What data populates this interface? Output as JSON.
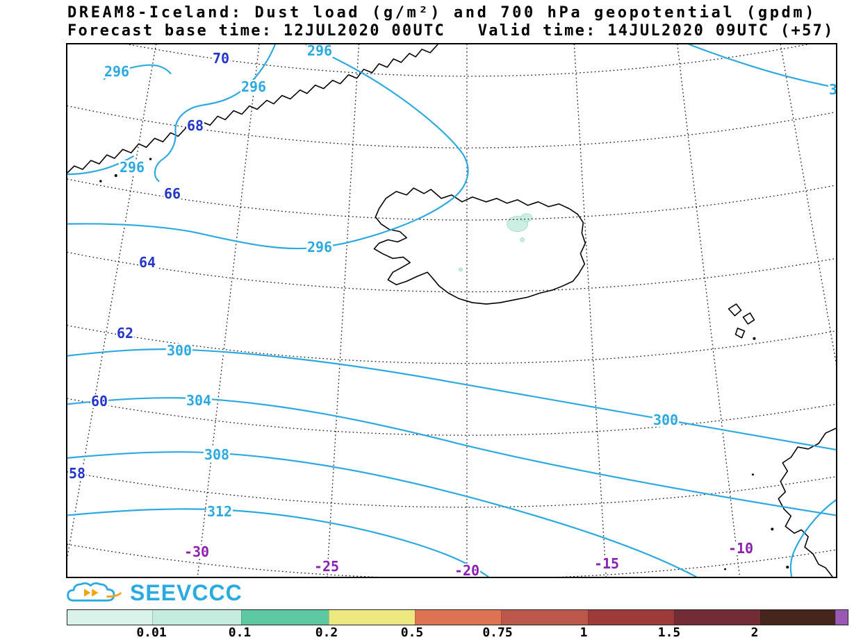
{
  "header": {
    "title_line1": "DREAM8-Iceland: Dust load (g/m²) and 700 hPa geopotential (gpdm)",
    "title_line2": "Forecast base time: 12JUL2020 00UTC   Valid time: 14JUL2020 09UTC (+57)"
  },
  "map": {
    "lat_labels": [
      "70",
      "68",
      "66",
      "64",
      "62",
      "60",
      "58"
    ],
    "lon_labels": [
      "-30",
      "-25",
      "-20",
      "-15",
      "-10"
    ],
    "contour_labels": [
      "296",
      "296",
      "296",
      "296",
      "296",
      "300",
      "304",
      "308",
      "312",
      "300",
      "3"
    ],
    "colors": {
      "geopotential_contour": "#2da9e1",
      "lat_label": "#2436c9",
      "lon_label": "#8b1fb4",
      "coastline": "#000000",
      "dust_fill": "#cdeee3",
      "graticule": "#222222"
    }
  },
  "logo": {
    "text": "SEEVCCC",
    "color": "#29abe2",
    "accent_color": "#f2a30f"
  },
  "colorbar": {
    "labels": [
      "0.01",
      "0.1",
      "0.2",
      "0.5",
      "0.75",
      "1",
      "1.5",
      "2"
    ],
    "segment_colors": [
      "#d9f3ea",
      "#c4ecdf",
      "#5dc9a1",
      "#ece87f",
      "#de7352",
      "#bc584a",
      "#9d3b38",
      "#732c36",
      "#46251d",
      "#9b59b6"
    ]
  },
  "chart_data": {
    "type": "contour-map",
    "title": "DREAM8-Iceland: Dust load (g/m²) and 700 hPa geopotential (gpdm)",
    "forecast_base_time": "12JUL2020 00UTC",
    "valid_time": "14JUL2020 09UTC (+57)",
    "geopotential_contours_gpdm": [
      296,
      300,
      304,
      308,
      312
    ],
    "dust_load_levels_g_m2": [
      0.01,
      0.1,
      0.2,
      0.5,
      0.75,
      1,
      1.5,
      2
    ],
    "lat_ticks_deg": [
      70,
      68,
      66,
      64,
      62,
      60,
      58
    ],
    "lon_ticks_deg": [
      -30,
      -25,
      -20,
      -15,
      -10
    ]
  }
}
